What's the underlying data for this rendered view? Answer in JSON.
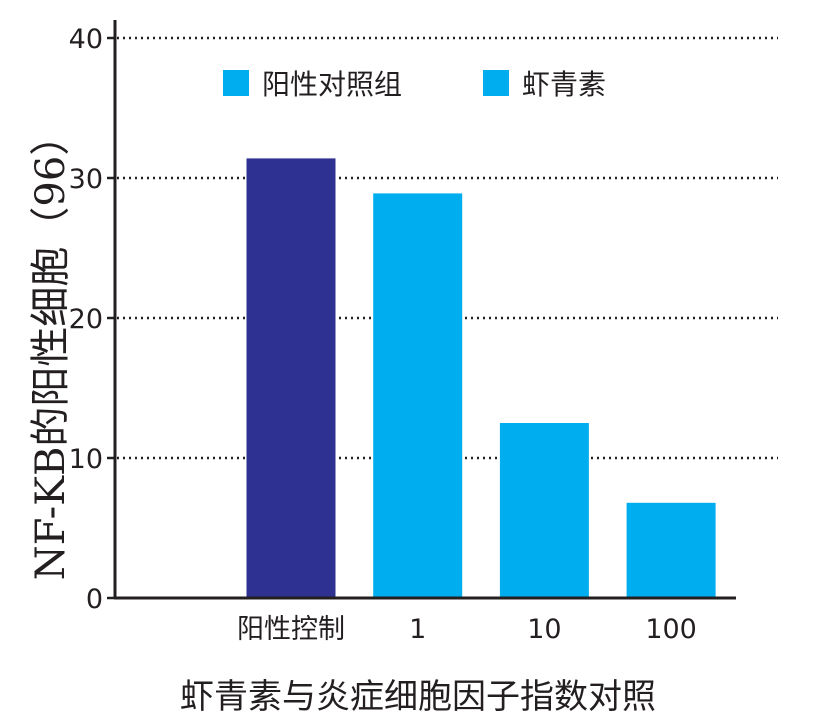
{
  "chart_data": {
    "type": "bar",
    "title": "",
    "xlabel": "虾青素与炎症细胞因子指数对照",
    "ylabel": "NF-KB的阳性细胞（96）",
    "ylim": [
      0,
      40
    ],
    "yticks": [
      "0",
      "10",
      "20",
      "30",
      "40"
    ],
    "grid": "horizontal dotted",
    "legend_placement": "top",
    "categories": [
      "阳性控制",
      "1",
      "10",
      "100"
    ],
    "values": [
      31.4,
      28.9,
      12.5,
      6.8
    ],
    "bar_colors": [
      "#2e3191",
      "#00aeef",
      "#00aeef",
      "#00aeef"
    ],
    "legend": [
      {
        "label": "阳性对照组",
        "color": "#00aeef"
      },
      {
        "label": "虾青素",
        "color": "#00aeef"
      }
    ]
  }
}
